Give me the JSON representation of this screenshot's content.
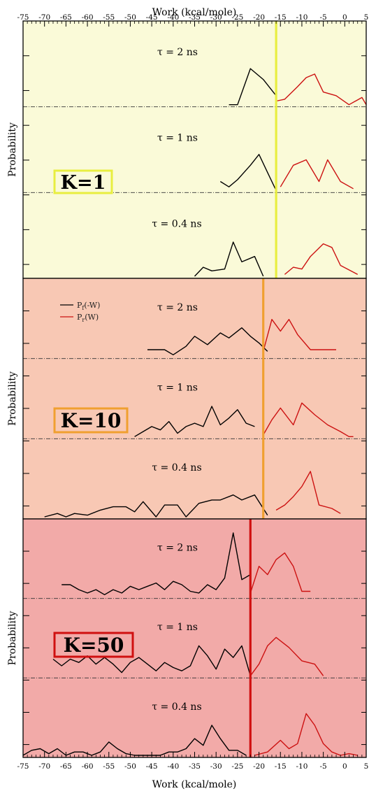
{
  "top_axis_label": "Work (kcal/mole)",
  "bottom_axis_label": "Work (kcal/mole)",
  "ylabel": "Probability",
  "legend": [
    "P_f(-W)",
    "P_r(W)"
  ],
  "legend_display": [
    {
      "base": "P",
      "sub": "f",
      "rest": "(-W)"
    },
    {
      "base": "P",
      "sub": "r",
      "rest": "(W)"
    }
  ],
  "colors": {
    "forward": "#000000",
    "reverse": "#cc1111",
    "k1_bg": "#fafad8",
    "k1_accent": "#e8ee40",
    "k10_bg": "#f8c8b4",
    "k10_accent": "#f0a030",
    "k50_bg": "#f2aaa8",
    "k50_accent": "#d01010"
  },
  "chart_data": [
    {
      "type": "line",
      "panel": "K=1",
      "label": "K=1",
      "xlim": [
        -75,
        5
      ],
      "xticks": [
        -75,
        -70,
        -65,
        -60,
        -55,
        -50,
        -45,
        -40,
        -35,
        -30,
        -25,
        -20,
        -15,
        -10,
        -5,
        0,
        5
      ],
      "xlabel": "Work (kcal/mole)",
      "ylabel": "Probability",
      "vline": -16,
      "groups": [
        {
          "tau": "τ = 2 ns",
          "series": [
            {
              "name": "P_f(-W)",
              "x": [
                -27,
                -25,
                -22,
                -19,
                -16
              ],
              "y": [
                0.0,
                0.0,
                1.0,
                0.7,
                0.25
              ]
            },
            {
              "name": "P_r(W)",
              "x": [
                -16,
                -14,
                -11,
                -9,
                -7,
                -5,
                -2,
                1,
                4,
                5
              ],
              "y": [
                0.1,
                0.15,
                0.5,
                0.75,
                0.85,
                0.35,
                0.25,
                0.0,
                0.2,
                0.0
              ]
            }
          ]
        },
        {
          "tau": "τ = 1 ns",
          "series": [
            {
              "name": "P_f(-W)",
              "x": [
                -29,
                -27,
                -25,
                -22,
                -20,
                -18,
                -16
              ],
              "y": [
                0.25,
                0.1,
                0.3,
                0.7,
                1.0,
                0.5,
                0.0
              ]
            },
            {
              "name": "P_r(W)",
              "x": [
                -15,
                -12,
                -9,
                -6,
                -4,
                -1,
                2
              ],
              "y": [
                0.1,
                0.7,
                0.85,
                0.25,
                0.85,
                0.25,
                0.05
              ]
            }
          ]
        },
        {
          "tau": "τ = 0.4 ns",
          "series": [
            {
              "name": "P_f(-W)",
              "x": [
                -35,
                -33,
                -31,
                -28,
                -26,
                -24,
                -21,
                -19
              ],
              "y": [
                0.0,
                0.25,
                0.15,
                0.2,
                0.95,
                0.4,
                0.55,
                0.0
              ]
            },
            {
              "name": "P_r(W)",
              "x": [
                -14,
                -12,
                -10,
                -8,
                -5,
                -3,
                -1,
                3
              ],
              "y": [
                0.05,
                0.25,
                0.2,
                0.55,
                0.9,
                0.8,
                0.3,
                0.05
              ]
            }
          ]
        }
      ]
    },
    {
      "type": "line",
      "panel": "K=10",
      "label": "K=10",
      "xlim": [
        -75,
        5
      ],
      "xticks": [
        -75,
        -70,
        -65,
        -60,
        -55,
        -50,
        -45,
        -40,
        -35,
        -30,
        -25,
        -20,
        -15,
        -10,
        -5,
        0,
        5
      ],
      "xlabel": "Work (kcal/mole)",
      "ylabel": "Probability",
      "vline": -19,
      "groups": [
        {
          "tau": "τ = 2 ns",
          "series": [
            {
              "name": "P_f(-W)",
              "x": [
                -46,
                -42,
                -40,
                -37,
                -35,
                -32,
                -29,
                -27,
                -24,
                -22,
                -20,
                -18
              ],
              "y": [
                0.2,
                0.2,
                0.05,
                0.3,
                0.6,
                0.35,
                0.7,
                0.55,
                0.85,
                0.6,
                0.4,
                0.15
              ]
            },
            {
              "name": "P_r(W)",
              "x": [
                -19,
                -17,
                -15,
                -13,
                -11,
                -8,
                -5,
                -2
              ],
              "y": [
                0.15,
                1.1,
                0.75,
                1.1,
                0.65,
                0.2,
                0.2,
                0.2
              ]
            }
          ]
        },
        {
          "tau": "τ = 1 ns",
          "series": [
            {
              "name": "P_f(-W)",
              "x": [
                -49,
                -47,
                -45,
                -43,
                -41,
                -39,
                -37,
                -35,
                -33,
                -31,
                -29,
                -27,
                -25,
                -23,
                -21
              ],
              "y": [
                0.0,
                0.15,
                0.3,
                0.2,
                0.45,
                0.1,
                0.3,
                0.4,
                0.3,
                0.9,
                0.35,
                0.55,
                0.8,
                0.4,
                0.3
              ]
            },
            {
              "name": "P_r(W)",
              "x": [
                -19,
                -17,
                -15,
                -12,
                -10,
                -7,
                -4,
                -1,
                1,
                2
              ],
              "y": [
                0.05,
                0.5,
                0.85,
                0.35,
                1.0,
                0.65,
                0.35,
                0.15,
                0.0,
                0.0
              ]
            }
          ]
        },
        {
          "tau": "τ = 0.4 ns",
          "series": [
            {
              "name": "P_f(-W)",
              "x": [
                -70,
                -67,
                -65,
                -63,
                -60,
                -57,
                -54,
                -51,
                -49,
                -47,
                -44,
                -42,
                -39,
                -37,
                -34,
                -31,
                -29,
                -26,
                -24,
                -21,
                -18
              ],
              "y": [
                0.0,
                0.1,
                0.0,
                0.1,
                0.05,
                0.2,
                0.3,
                0.3,
                0.15,
                0.45,
                0.0,
                0.35,
                0.35,
                0.0,
                0.4,
                0.5,
                0.5,
                0.65,
                0.5,
                0.65,
                0.05
              ]
            },
            {
              "name": "P_r(W)",
              "x": [
                -16,
                -14,
                -12,
                -10,
                -8,
                -6,
                -3,
                -1
              ],
              "y": [
                0.2,
                0.35,
                0.6,
                0.9,
                1.35,
                0.35,
                0.25,
                0.1
              ]
            }
          ]
        }
      ]
    },
    {
      "type": "line",
      "panel": "K=50",
      "label": "K=50",
      "xlim": [
        -75,
        5
      ],
      "xticks": [
        -75,
        -70,
        -65,
        -60,
        -55,
        -50,
        -45,
        -40,
        -35,
        -30,
        -25,
        -20,
        -15,
        -10,
        -5,
        0,
        5
      ],
      "xlabel": "Work (kcal/mole)",
      "ylabel": "Probability",
      "vline": -22,
      "groups": [
        {
          "tau": "τ = 2 ns",
          "series": [
            {
              "name": "P_f(-W)",
              "x": [
                -66,
                -64,
                -62,
                -60,
                -58,
                -56,
                -54,
                -52,
                -50,
                -48,
                -46,
                -44,
                -42,
                -40,
                -38,
                -36,
                -34,
                -32,
                -30,
                -28,
                -26,
                -24,
                -22
              ],
              "y": [
                0.35,
                0.35,
                0.2,
                0.1,
                0.2,
                0.05,
                0.2,
                0.1,
                0.3,
                0.2,
                0.3,
                0.4,
                0.2,
                0.45,
                0.35,
                0.15,
                0.1,
                0.35,
                0.2,
                0.55,
                1.9,
                0.5,
                0.65
              ]
            },
            {
              "name": "P_r(W)",
              "x": [
                -22,
                -20,
                -18,
                -16,
                -14,
                -12,
                -10,
                -8
              ],
              "y": [
                0.1,
                0.9,
                0.65,
                1.1,
                1.3,
                0.9,
                0.15,
                0.15
              ]
            }
          ]
        },
        {
          "tau": "τ = 1 ns",
          "series": [
            {
              "name": "P_f(-W)",
              "x": [
                -68,
                -66,
                -64,
                -62,
                -60,
                -58,
                -56,
                -54,
                -52,
                -50,
                -48,
                -46,
                -44,
                -42,
                -40,
                -38,
                -36,
                -34,
                -32,
                -30,
                -28,
                -26,
                -24,
                -22
              ],
              "y": [
                0.5,
                0.3,
                0.5,
                0.4,
                0.6,
                0.35,
                0.55,
                0.35,
                0.1,
                0.4,
                0.55,
                0.35,
                0.15,
                0.4,
                0.25,
                0.15,
                0.3,
                0.9,
                0.6,
                0.2,
                0.8,
                0.55,
                0.9,
                0.0
              ]
            },
            {
              "name": "P_r(W)",
              "x": [
                -22,
                -20,
                -18,
                -16,
                -13,
                -10,
                -7,
                -5
              ],
              "y": [
                0.0,
                0.35,
                0.9,
                1.15,
                0.85,
                0.45,
                0.35,
                0.0
              ]
            }
          ]
        },
        {
          "tau": "τ = 0.4 ns",
          "series": [
            {
              "name": "P_f(-W)",
              "x": [
                -75,
                -73,
                -71,
                -69,
                -67,
                -65,
                -63,
                -61,
                -59,
                -57,
                -55,
                -53,
                -51,
                -49,
                -47,
                -45,
                -43,
                -41,
                -39,
                -37,
                -35,
                -33,
                -31,
                -29,
                -27,
                -25,
                -23
              ],
              "y": [
                0.0,
                0.15,
                0.2,
                0.05,
                0.2,
                0.0,
                0.1,
                0.1,
                0.0,
                0.1,
                0.4,
                0.2,
                0.05,
                0.0,
                0.0,
                0.0,
                0.0,
                0.1,
                0.1,
                0.2,
                0.5,
                0.3,
                0.9,
                0.5,
                0.15,
                0.15,
                0.0
              ]
            },
            {
              "name": "P_r(W)",
              "x": [
                -21,
                -18,
                -15,
                -13,
                -11,
                -9,
                -7,
                -5,
                -3,
                -1,
                1,
                3
              ],
              "y": [
                0.0,
                0.1,
                0.45,
                0.2,
                0.35,
                1.25,
                0.9,
                0.35,
                0.1,
                0.0,
                0.05,
                0.0
              ]
            }
          ]
        }
      ]
    }
  ]
}
